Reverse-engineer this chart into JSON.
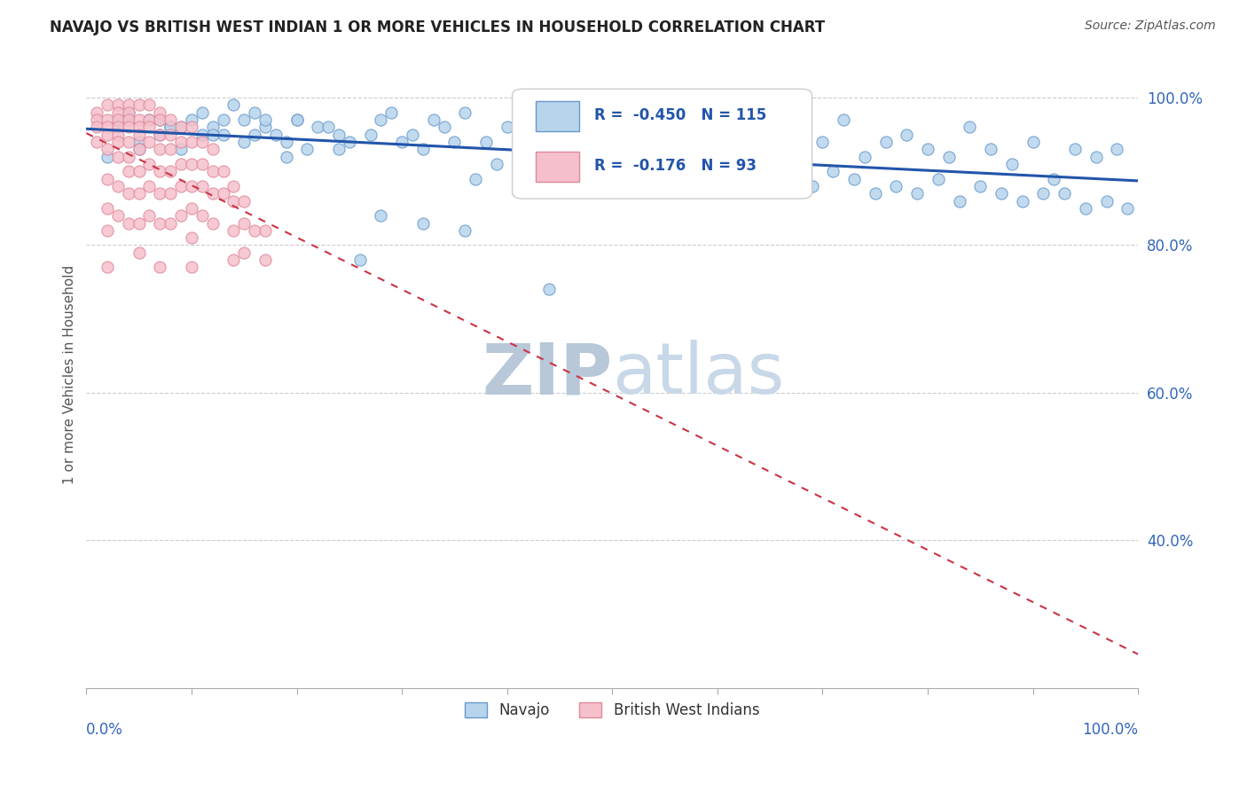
{
  "title": "NAVAJO VS BRITISH WEST INDIAN 1 OR MORE VEHICLES IN HOUSEHOLD CORRELATION CHART",
  "source": "Source: ZipAtlas.com",
  "ylabel": "1 or more Vehicles in Household",
  "ytick_labels": [
    "40.0%",
    "60.0%",
    "80.0%",
    "100.0%"
  ],
  "ytick_values": [
    0.4,
    0.6,
    0.8,
    1.0
  ],
  "navajo_R": -0.45,
  "navajo_N": 115,
  "bwi_R": -0.176,
  "bwi_N": 93,
  "navajo_color": "#b8d4ec",
  "navajo_edge_color": "#6699cc",
  "bwi_color": "#f5c0cc",
  "bwi_edge_color": "#e08899",
  "trend_navajo_color": "#2255aa",
  "trend_bwi_color": "#cc3344",
  "watermark_color": "#ccd8e4",
  "title_color": "#222222",
  "axis_label_color": "#3366bb",
  "legend_R_color": "#2255aa",
  "bg_color": "#ffffff",
  "navajo_x": [
    0.02,
    0.03,
    0.04,
    0.05,
    0.06,
    0.07,
    0.08,
    0.09,
    0.1,
    0.11,
    0.12,
    0.13,
    0.14,
    0.15,
    0.16,
    0.17,
    0.18,
    0.19,
    0.2,
    0.22,
    0.24,
    0.26,
    0.28,
    0.3,
    0.32,
    0.34,
    0.36,
    0.38,
    0.4,
    0.42,
    0.44,
    0.46,
    0.48,
    0.5,
    0.52,
    0.54,
    0.56,
    0.58,
    0.6,
    0.62,
    0.64,
    0.66,
    0.68,
    0.7,
    0.72,
    0.74,
    0.76,
    0.78,
    0.8,
    0.82,
    0.84,
    0.86,
    0.88,
    0.9,
    0.92,
    0.94,
    0.96,
    0.98,
    0.03,
    0.05,
    0.07,
    0.09,
    0.11,
    0.13,
    0.15,
    0.17,
    0.19,
    0.21,
    0.23,
    0.25,
    0.27,
    0.29,
    0.31,
    0.33,
    0.35,
    0.37,
    0.39,
    0.41,
    0.43,
    0.45,
    0.47,
    0.49,
    0.51,
    0.53,
    0.55,
    0.57,
    0.59,
    0.61,
    0.63,
    0.65,
    0.67,
    0.69,
    0.71,
    0.73,
    0.75,
    0.77,
    0.79,
    0.81,
    0.83,
    0.85,
    0.87,
    0.89,
    0.91,
    0.93,
    0.95,
    0.97,
    0.99,
    0.04,
    0.08,
    0.12,
    0.16,
    0.2,
    0.24,
    0.28,
    0.32,
    0.36
  ],
  "navajo_y": [
    0.92,
    0.96,
    0.98,
    0.94,
    0.97,
    0.95,
    0.96,
    0.93,
    0.97,
    0.98,
    0.96,
    0.97,
    0.99,
    0.97,
    0.98,
    0.96,
    0.95,
    0.94,
    0.97,
    0.96,
    0.95,
    0.78,
    0.97,
    0.94,
    0.93,
    0.96,
    0.98,
    0.94,
    0.96,
    0.97,
    0.74,
    0.94,
    0.95,
    0.94,
    0.93,
    0.96,
    0.93,
    0.97,
    0.91,
    0.93,
    0.95,
    0.96,
    0.93,
    0.94,
    0.97,
    0.92,
    0.94,
    0.95,
    0.93,
    0.92,
    0.96,
    0.93,
    0.91,
    0.94,
    0.89,
    0.93,
    0.92,
    0.93,
    0.97,
    0.93,
    0.97,
    0.96,
    0.95,
    0.95,
    0.94,
    0.97,
    0.92,
    0.93,
    0.96,
    0.94,
    0.95,
    0.98,
    0.95,
    0.97,
    0.94,
    0.89,
    0.91,
    0.88,
    0.93,
    0.9,
    0.93,
    0.91,
    0.92,
    0.89,
    0.9,
    0.88,
    0.91,
    0.88,
    0.92,
    0.89,
    0.91,
    0.88,
    0.9,
    0.89,
    0.87,
    0.88,
    0.87,
    0.89,
    0.86,
    0.88,
    0.87,
    0.86,
    0.87,
    0.87,
    0.85,
    0.86,
    0.85,
    0.97,
    0.96,
    0.95,
    0.95,
    0.97,
    0.93,
    0.84,
    0.83,
    0.82
  ],
  "bwi_x": [
    0.01,
    0.01,
    0.01,
    0.01,
    0.02,
    0.02,
    0.02,
    0.02,
    0.02,
    0.02,
    0.02,
    0.02,
    0.02,
    0.03,
    0.03,
    0.03,
    0.03,
    0.03,
    0.03,
    0.03,
    0.03,
    0.03,
    0.04,
    0.04,
    0.04,
    0.04,
    0.04,
    0.04,
    0.04,
    0.04,
    0.04,
    0.05,
    0.05,
    0.05,
    0.05,
    0.05,
    0.05,
    0.05,
    0.05,
    0.05,
    0.06,
    0.06,
    0.06,
    0.06,
    0.06,
    0.06,
    0.06,
    0.07,
    0.07,
    0.07,
    0.07,
    0.07,
    0.07,
    0.07,
    0.07,
    0.08,
    0.08,
    0.08,
    0.08,
    0.08,
    0.08,
    0.09,
    0.09,
    0.09,
    0.09,
    0.09,
    0.1,
    0.1,
    0.1,
    0.1,
    0.1,
    0.1,
    0.1,
    0.11,
    0.11,
    0.11,
    0.11,
    0.12,
    0.12,
    0.12,
    0.12,
    0.13,
    0.13,
    0.14,
    0.14,
    0.14,
    0.14,
    0.15,
    0.15,
    0.15,
    0.16,
    0.17,
    0.17
  ],
  "bwi_y": [
    0.98,
    0.97,
    0.96,
    0.94,
    0.99,
    0.97,
    0.96,
    0.95,
    0.93,
    0.89,
    0.85,
    0.82,
    0.77,
    0.99,
    0.98,
    0.97,
    0.96,
    0.95,
    0.94,
    0.92,
    0.88,
    0.84,
    0.99,
    0.98,
    0.97,
    0.96,
    0.94,
    0.92,
    0.9,
    0.87,
    0.83,
    0.99,
    0.97,
    0.96,
    0.95,
    0.93,
    0.9,
    0.87,
    0.83,
    0.79,
    0.99,
    0.97,
    0.96,
    0.94,
    0.91,
    0.88,
    0.84,
    0.98,
    0.97,
    0.95,
    0.93,
    0.9,
    0.87,
    0.83,
    0.77,
    0.97,
    0.95,
    0.93,
    0.9,
    0.87,
    0.83,
    0.96,
    0.94,
    0.91,
    0.88,
    0.84,
    0.96,
    0.94,
    0.91,
    0.88,
    0.85,
    0.81,
    0.77,
    0.94,
    0.91,
    0.88,
    0.84,
    0.93,
    0.9,
    0.87,
    0.83,
    0.9,
    0.87,
    0.88,
    0.86,
    0.82,
    0.78,
    0.86,
    0.83,
    0.79,
    0.82,
    0.82,
    0.78
  ],
  "xlim": [
    0.0,
    1.0
  ],
  "ylim": [
    0.2,
    1.05
  ]
}
